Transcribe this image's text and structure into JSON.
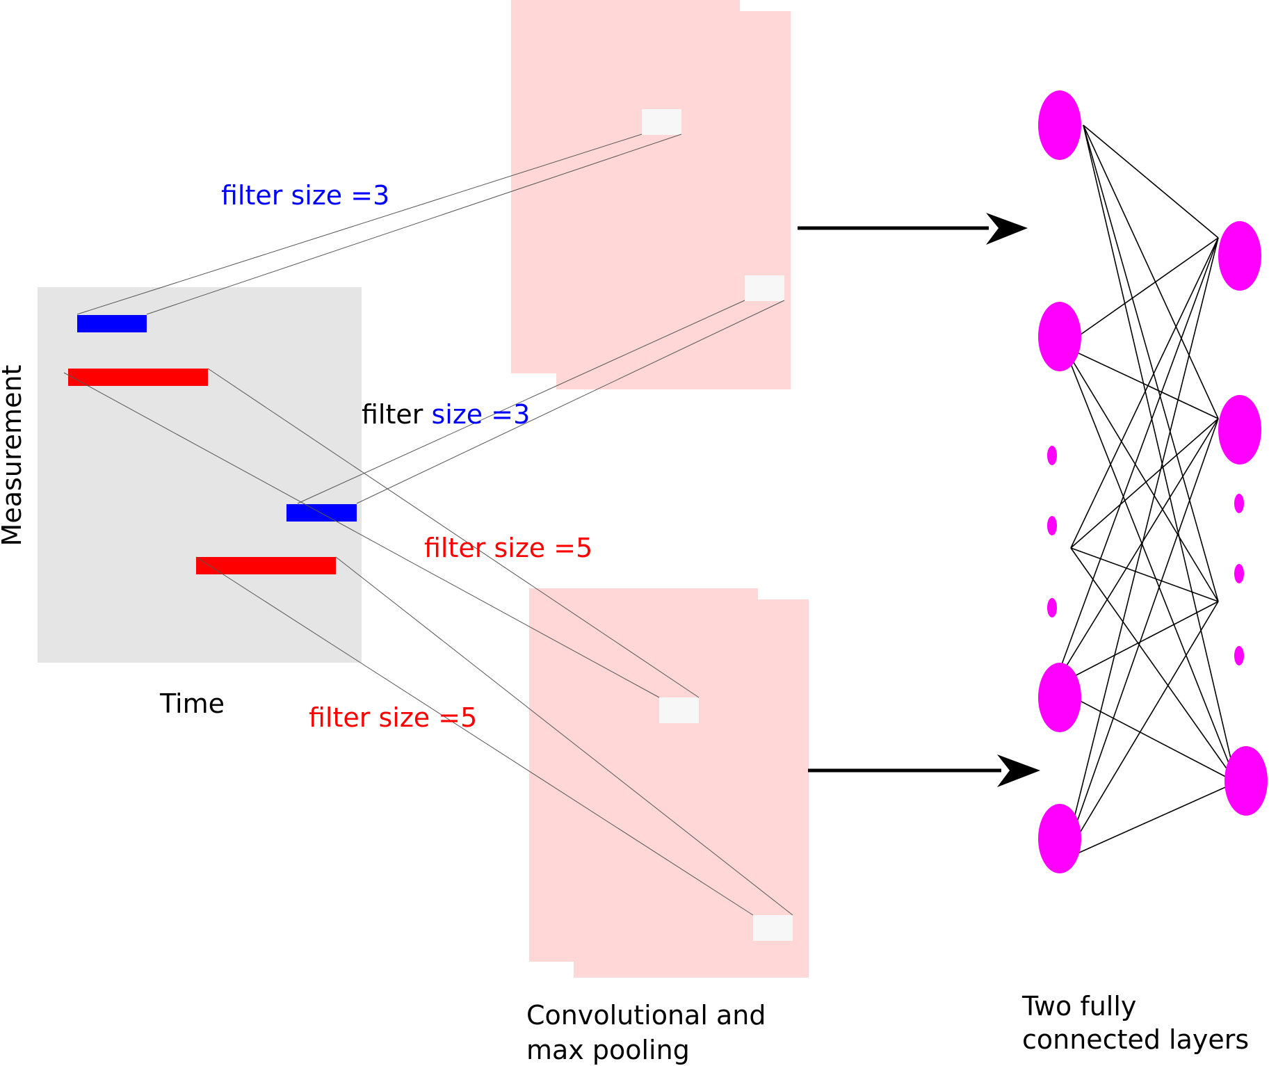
{
  "axes": {
    "x_label": "Time",
    "y_label": "Measurement"
  },
  "filters": [
    {
      "label": "filter size =3",
      "color": "#0000ff"
    },
    {
      "label": "filter size =3",
      "color": "#0000ff",
      "split": [
        "filter",
        " size =3"
      ]
    },
    {
      "label": "filter size =5",
      "color": "#ff0000"
    },
    {
      "label": "filter size =5",
      "color": "#ff0000"
    }
  ],
  "captions": {
    "conv_line1": "Convolutional and",
    "conv_line2": "max pooling",
    "fc_line1": "Two fully",
    "fc_line2": "connected layers"
  },
  "colors": {
    "input_bg": "#e5e5e5",
    "feature_map": "#ffd7d7",
    "pooled_cell": "#f7f7f7",
    "neuron": "#ff00ff",
    "blue_filter": "#0000ff",
    "red_filter": "#ff0000",
    "arrow": "#000000"
  }
}
